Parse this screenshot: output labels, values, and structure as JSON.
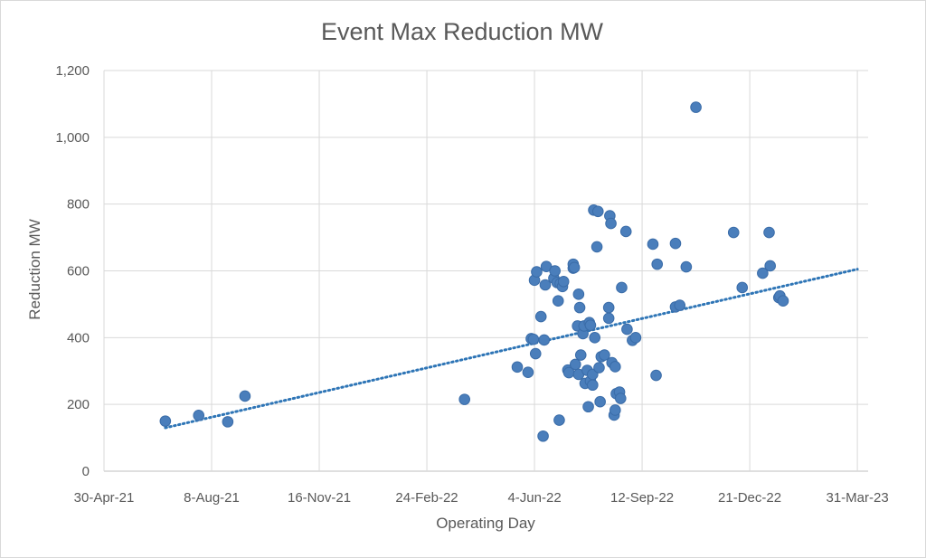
{
  "chart_data": {
    "type": "scatter",
    "title": "Event Max Reduction MW",
    "xlabel": "Operating Day",
    "ylabel": "Reduction MW",
    "ylim": [
      0,
      1200
    ],
    "yticks": [
      0,
      200,
      400,
      600,
      800,
      1000,
      1200
    ],
    "ytick_labels": [
      "0",
      "200",
      "400",
      "600",
      "800",
      "1,000",
      "1,200"
    ],
    "xlim": [
      "2021-04-30",
      "2023-04-10"
    ],
    "xticks": [
      "2021-04-30",
      "2021-08-08",
      "2021-11-16",
      "2022-02-24",
      "2022-06-04",
      "2022-09-12",
      "2022-12-21",
      "2023-03-31"
    ],
    "xtick_labels": [
      "30-Apr-21",
      "8-Aug-21",
      "16-Nov-21",
      "24-Feb-22",
      "4-Jun-22",
      "12-Sep-22",
      "21-Dec-22",
      "31-Mar-23"
    ],
    "grid": true,
    "marker_color": "#4a7ebb",
    "trendline": {
      "type": "linear",
      "style": "dotted",
      "color": "#2e75b6",
      "x": [
        "2021-06-26",
        "2023-03-31"
      ],
      "y": [
        130,
        605
      ]
    },
    "series": [
      {
        "points": [
          [
            "2021-06-26",
            150
          ],
          [
            "2021-07-27",
            167
          ],
          [
            "2021-08-23",
            148
          ],
          [
            "2021-09-08",
            225
          ],
          [
            "2022-03-31",
            215
          ],
          [
            "2022-05-19",
            312
          ],
          [
            "2022-05-29",
            296
          ],
          [
            "2022-06-01",
            397
          ],
          [
            "2022-06-03",
            395
          ],
          [
            "2022-06-04",
            572
          ],
          [
            "2022-06-05",
            352
          ],
          [
            "2022-06-06",
            597
          ],
          [
            "2022-06-10",
            463
          ],
          [
            "2022-06-12",
            105
          ],
          [
            "2022-06-13",
            393
          ],
          [
            "2022-06-14",
            558
          ],
          [
            "2022-06-15",
            613
          ],
          [
            "2022-06-22",
            578
          ],
          [
            "2022-06-23",
            600
          ],
          [
            "2022-06-25",
            565
          ],
          [
            "2022-06-26",
            510
          ],
          [
            "2022-06-27",
            153
          ],
          [
            "2022-06-28",
            562
          ],
          [
            "2022-06-30",
            553
          ],
          [
            "2022-07-01",
            568
          ],
          [
            "2022-07-05",
            303
          ],
          [
            "2022-07-06",
            295
          ],
          [
            "2022-07-10",
            608
          ],
          [
            "2022-07-10",
            620
          ],
          [
            "2022-07-11",
            610
          ],
          [
            "2022-07-12",
            320
          ],
          [
            "2022-07-14",
            435
          ],
          [
            "2022-07-15",
            530
          ],
          [
            "2022-07-15",
            290
          ],
          [
            "2022-07-16",
            490
          ],
          [
            "2022-07-17",
            348
          ],
          [
            "2022-07-19",
            412
          ],
          [
            "2022-07-20",
            435
          ],
          [
            "2022-07-21",
            263
          ],
          [
            "2022-07-23",
            302
          ],
          [
            "2022-07-24",
            193
          ],
          [
            "2022-07-25",
            445
          ],
          [
            "2022-07-26",
            270
          ],
          [
            "2022-07-26",
            437
          ],
          [
            "2022-07-28",
            258
          ],
          [
            "2022-07-28",
            290
          ],
          [
            "2022-07-29",
            782
          ],
          [
            "2022-07-30",
            400
          ],
          [
            "2022-08-01",
            672
          ],
          [
            "2022-08-02",
            778
          ],
          [
            "2022-08-03",
            310
          ],
          [
            "2022-08-04",
            208
          ],
          [
            "2022-08-05",
            343
          ],
          [
            "2022-08-08",
            348
          ],
          [
            "2022-08-12",
            458
          ],
          [
            "2022-08-12",
            490
          ],
          [
            "2022-08-13",
            765
          ],
          [
            "2022-08-14",
            742
          ],
          [
            "2022-08-15",
            325
          ],
          [
            "2022-08-17",
            168
          ],
          [
            "2022-08-18",
            313
          ],
          [
            "2022-08-18",
            183
          ],
          [
            "2022-08-19",
            232
          ],
          [
            "2022-08-22",
            237
          ],
          [
            "2022-08-23",
            218
          ],
          [
            "2022-08-24",
            550
          ],
          [
            "2022-08-28",
            718
          ],
          [
            "2022-08-29",
            425
          ],
          [
            "2022-09-03",
            392
          ],
          [
            "2022-09-06",
            400
          ],
          [
            "2022-09-22",
            680
          ],
          [
            "2022-09-25",
            287
          ],
          [
            "2022-09-26",
            620
          ],
          [
            "2022-10-13",
            682
          ],
          [
            "2022-10-13",
            492
          ],
          [
            "2022-10-17",
            497
          ],
          [
            "2022-10-23",
            612
          ],
          [
            "2022-11-01",
            1090
          ],
          [
            "2022-12-06",
            715
          ],
          [
            "2022-12-14",
            550
          ],
          [
            "2023-01-02",
            593
          ],
          [
            "2023-01-08",
            715
          ],
          [
            "2023-01-09",
            615
          ],
          [
            "2023-01-17",
            520
          ],
          [
            "2023-01-18",
            525
          ],
          [
            "2023-01-21",
            510
          ]
        ]
      }
    ]
  }
}
